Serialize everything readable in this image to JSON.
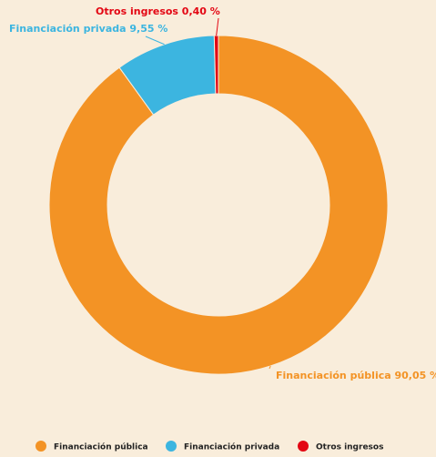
{
  "chart_data": {
    "type": "donut",
    "categories": [
      "Financiación pública",
      "Financiación privada",
      "Otros ingresos"
    ],
    "values": [
      90.05,
      9.55,
      0.4
    ],
    "value_labels": [
      "Financiación pública 90,05 %",
      "Financiación privada 9,55 %",
      "Otros ingresos 0,40 %"
    ],
    "colors": [
      "#f39325",
      "#3cb5e0",
      "#e30613"
    ],
    "legend": "bottom"
  }
}
